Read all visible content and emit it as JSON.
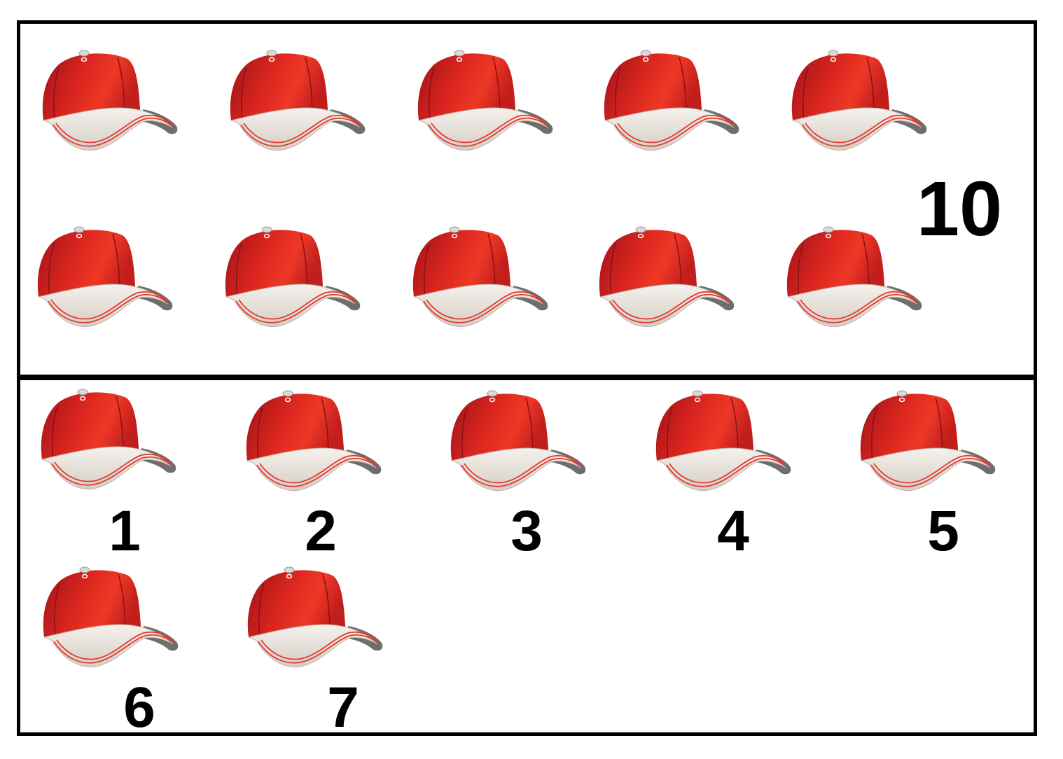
{
  "colors": {
    "cap_red": "#e8281e",
    "cap_red_dark": "#a3141a",
    "visor_cream": "#e9e2da",
    "visor_under": "#6e6e6e",
    "stripe": "#e23a2e",
    "border": "#000000"
  },
  "icon": "baseball-cap-icon",
  "top_group": {
    "cap_count": 10,
    "total_label": "10"
  },
  "bottom_group": {
    "cap_count": 7,
    "numbers": [
      "1",
      "2",
      "3",
      "4",
      "5",
      "6",
      "7"
    ]
  }
}
